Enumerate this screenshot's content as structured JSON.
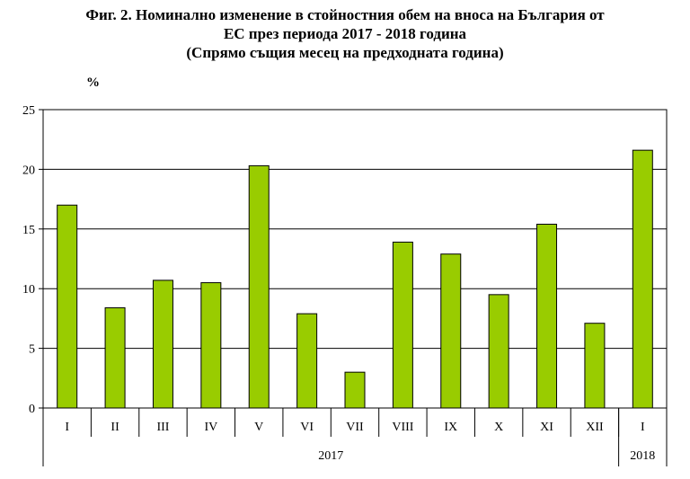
{
  "chart_data": {
    "type": "bar",
    "title_lines": [
      "Фиг. 2. Номинално изменение в стойностния обем на вноса на България от",
      "ЕС през периода 2017 - 2018 година",
      "(Спрямо същия месец на предходната година)"
    ],
    "ylabel": "%",
    "ylim": [
      0,
      25
    ],
    "yticks": [
      0,
      5,
      10,
      15,
      20,
      25
    ],
    "categories": [
      "I",
      "II",
      "III",
      "IV",
      "V",
      "VI",
      "VII",
      "VIII",
      "IX",
      "X",
      "XI",
      "XII",
      "I"
    ],
    "values": [
      17.0,
      8.4,
      10.7,
      10.5,
      20.3,
      7.9,
      3.0,
      13.9,
      12.9,
      9.5,
      15.4,
      7.1,
      21.6
    ],
    "year_groups": [
      {
        "label": "2017",
        "count": 12
      },
      {
        "label": "2018",
        "count": 1
      }
    ],
    "bar_color": "#99cc00",
    "grid": true,
    "legend": "none"
  }
}
